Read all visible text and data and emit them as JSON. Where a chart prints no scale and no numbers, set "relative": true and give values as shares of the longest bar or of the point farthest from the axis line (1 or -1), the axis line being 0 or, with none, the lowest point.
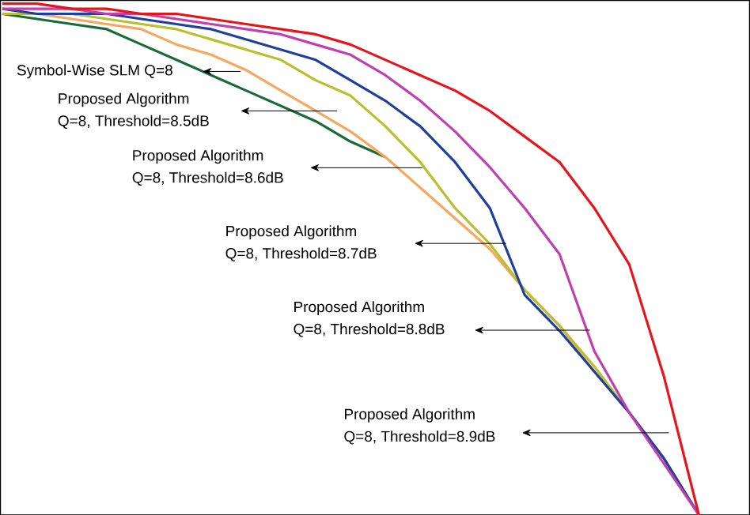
{
  "chart_data": {
    "type": "line",
    "relative": true,
    "categories": [
      null,
      null,
      null,
      null,
      null,
      null,
      null,
      null,
      null,
      null,
      null,
      null,
      null,
      null,
      null,
      null,
      null,
      null,
      null,
      null,
      null
    ],
    "series": [
      {
        "color": "#1a6a3a",
        "values": [
          0.98,
          0.97,
          0.96,
          0.95,
          0.92,
          0.89,
          0.86,
          0.83,
          0.8,
          0.77,
          0.73,
          0.7,
          null,
          null,
          null,
          null,
          null,
          null,
          null,
          null,
          null
        ]
      },
      {
        "color": "#f4a860",
        "values": [
          0.98,
          0.98,
          0.97,
          0.96,
          0.95,
          0.92,
          0.9,
          0.87,
          0.83,
          0.79,
          0.75,
          0.7,
          0.64,
          0.58,
          0.52,
          0.44,
          0.37,
          0.28,
          0.2,
          0.11,
          0
        ]
      },
      {
        "color": "#b8c030",
        "values": [
          0.98,
          0.98,
          0.98,
          0.97,
          0.96,
          0.95,
          0.93,
          0.91,
          0.89,
          0.85,
          0.82,
          0.76,
          0.69,
          0.6,
          0.53,
          0.44,
          0.37,
          0.29,
          0.2,
          0.11,
          0
        ]
      },
      {
        "color": "#1f3f9f",
        "values": [
          0.99,
          0.98,
          0.98,
          0.98,
          0.97,
          0.96,
          0.95,
          0.93,
          0.91,
          0.89,
          0.85,
          0.81,
          0.76,
          0.69,
          0.6,
          0.43,
          0.36,
          0.28,
          0.2,
          0.11,
          0
        ]
      },
      {
        "color": "#c040b0",
        "values": [
          0.99,
          0.99,
          0.99,
          0.98,
          0.98,
          0.97,
          0.96,
          0.95,
          0.94,
          0.92,
          0.9,
          0.86,
          0.81,
          0.75,
          0.68,
          0.6,
          0.51,
          0.32,
          0.2,
          0.1,
          0
        ]
      },
      {
        "color": "#e8141b",
        "values": [
          1,
          1,
          0.99,
          0.99,
          0.98,
          0.98,
          0.97,
          0.96,
          0.95,
          0.94,
          0.92,
          0.89,
          0.86,
          0.83,
          0.79,
          0.74,
          0.69,
          0.6,
          0.49,
          0.27,
          0
        ]
      }
    ],
    "annotations": [
      "Symbol-Wise SLM Q=8",
      "Proposed Algorithm",
      "Q=8, Threshold=8.5dB",
      "Proposed Algorithm",
      "Q=8, Threshold=8.6dB",
      "Proposed Algorithm",
      "Q=8, Threshold=8.7dB",
      "Proposed Algorithm",
      "Q=8, Threshold=8.8dB",
      "Proposed Algorithm",
      "Q=8, Threshold=8.9dB"
    ]
  }
}
